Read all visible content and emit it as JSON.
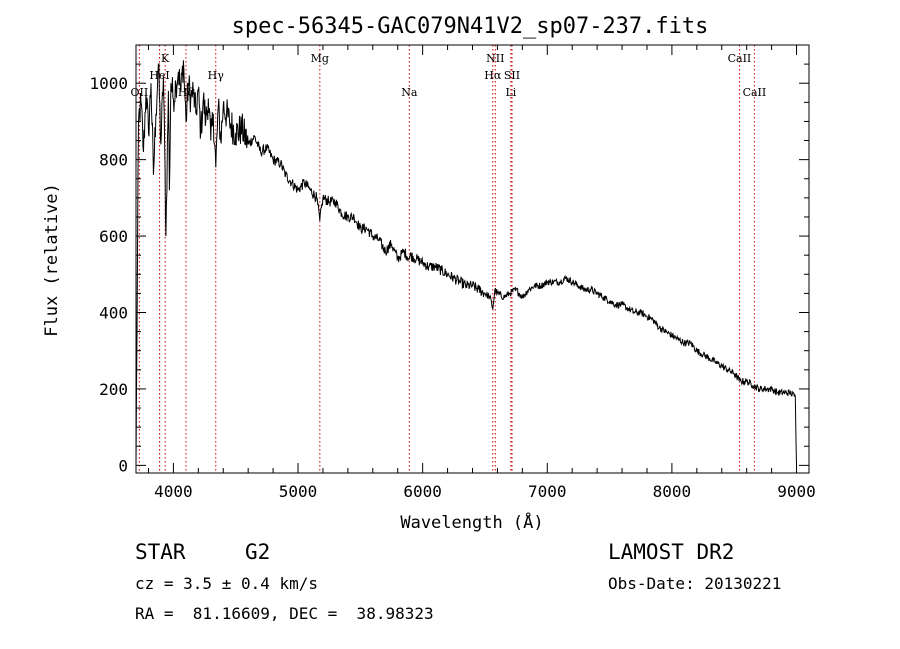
{
  "chart_data": {
    "type": "line",
    "title": "spec-56345-GAC079N41V2_sp07-237.fits",
    "xlabel": "Wavelength (Å)",
    "ylabel": "Flux (relative)",
    "xlim": [
      3700,
      9100
    ],
    "ylim": [
      -20,
      1100
    ],
    "xticks": [
      4000,
      5000,
      6000,
      7000,
      8000,
      9000
    ],
    "yticks": [
      0,
      200,
      400,
      600,
      800,
      1000
    ],
    "grid": false,
    "series": [
      {
        "name": "flux",
        "x": [
          3700,
          3720,
          3740,
          3760,
          3780,
          3800,
          3820,
          3840,
          3860,
          3880,
          3900,
          3920,
          3930,
          3940,
          3960,
          3968,
          3980,
          4000,
          4020,
          4040,
          4060,
          4080,
          4101,
          4120,
          4140,
          4160,
          4180,
          4200,
          4220,
          4240,
          4260,
          4280,
          4300,
          4320,
          4340,
          4360,
          4380,
          4400,
          4450,
          4500,
          4550,
          4600,
          4650,
          4700,
          4750,
          4800,
          4860,
          4900,
          4950,
          5000,
          5050,
          5100,
          5150,
          5175,
          5200,
          5250,
          5300,
          5350,
          5400,
          5450,
          5500,
          5550,
          5600,
          5650,
          5700,
          5750,
          5800,
          5850,
          5893,
          5900,
          5950,
          6000,
          6050,
          6100,
          6150,
          6200,
          6250,
          6300,
          6350,
          6400,
          6450,
          6500,
          6540,
          6563,
          6580,
          6600,
          6650,
          6700,
          6750,
          6800,
          6850,
          6900,
          6950,
          7000,
          7050,
          7100,
          7150,
          7200,
          7250,
          7300,
          7350,
          7400,
          7450,
          7500,
          7550,
          7600,
          7650,
          7700,
          7750,
          7800,
          7850,
          7900,
          7950,
          8000,
          8050,
          8100,
          8150,
          8200,
          8250,
          8300,
          8350,
          8400,
          8450,
          8500,
          8550,
          8600,
          8650,
          8700,
          8750,
          8800,
          8850,
          8900,
          8950,
          8990,
          9000
        ],
        "y": [
          0,
          900,
          950,
          820,
          980,
          870,
          1000,
          760,
          920,
          1050,
          840,
          1020,
          830,
          600,
          980,
          720,
          1000,
          960,
          1000,
          1030,
          980,
          1060,
          900,
          1000,
          960,
          980,
          920,
          980,
          870,
          960,
          900,
          960,
          850,
          920,
          780,
          940,
          850,
          940,
          900,
          870,
          880,
          840,
          860,
          820,
          830,
          800,
          790,
          760,
          740,
          720,
          740,
          720,
          700,
          640,
          700,
          690,
          690,
          660,
          650,
          650,
          620,
          620,
          600,
          590,
          560,
          580,
          540,
          560,
          540,
          550,
          540,
          530,
          520,
          520,
          510,
          500,
          490,
          480,
          470,
          470,
          460,
          450,
          440,
          410,
          460,
          450,
          440,
          450,
          460,
          440,
          460,
          470,
          470,
          480,
          480,
          480,
          490,
          480,
          470,
          460,
          460,
          450,
          440,
          430,
          420,
          420,
          410,
          400,
          400,
          390,
          380,
          360,
          350,
          340,
          330,
          320,
          320,
          300,
          290,
          280,
          270,
          260,
          250,
          240,
          220,
          220,
          210,
          200,
          200,
          200,
          190,
          190,
          190,
          180,
          0
        ]
      }
    ],
    "lines": [
      {
        "label": "OII",
        "x": 3727,
        "row": 2
      },
      {
        "label": "K",
        "x": 3934,
        "row": 0
      },
      {
        "label": "HeI",
        "x": 3889,
        "row": 1
      },
      {
        "label": "Hδ",
        "x": 4101,
        "row": 2
      },
      {
        "label": "Hγ",
        "x": 4340,
        "row": 1
      },
      {
        "label": "Mg",
        "x": 5175,
        "row": 0
      },
      {
        "label": "Na",
        "x": 5893,
        "row": 2
      },
      {
        "label": "NII",
        "x": 6583,
        "row": 0
      },
      {
        "label": "Hα",
        "x": 6563,
        "row": 1
      },
      {
        "label": "SII",
        "x": 6717,
        "row": 1
      },
      {
        "label": "Li",
        "x": 6708,
        "row": 2
      },
      {
        "label": "CaII",
        "x": 8542,
        "row": 0
      },
      {
        "label": "CaII",
        "x": 8662,
        "row": 2
      }
    ]
  },
  "info": {
    "class_label": "STAR",
    "subclass": "G2",
    "survey": "LAMOST DR2",
    "cz": "cz = 3.5 ± 0.4 km/s",
    "obs_date": "Obs-Date: 20130221",
    "coords": "RA =  81.16609, DEC =  38.98323"
  },
  "colors": {
    "line": "#000000",
    "marker": "#cc0000"
  }
}
